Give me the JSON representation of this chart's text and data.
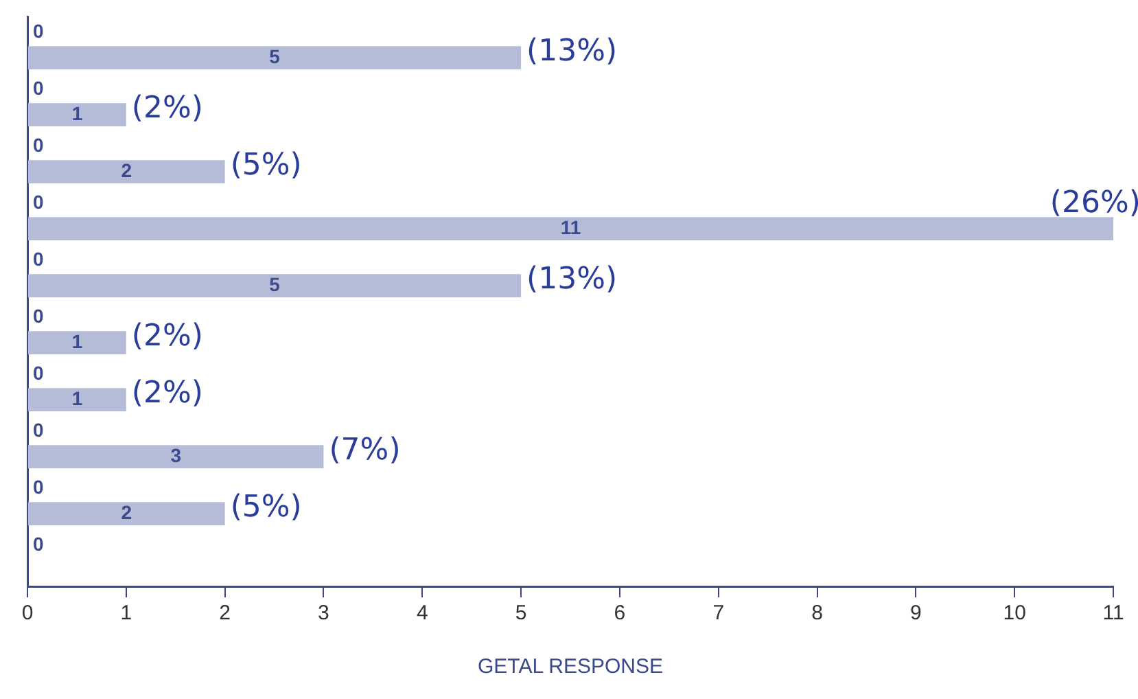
{
  "chart_data": {
    "type": "bar",
    "orientation": "horizontal",
    "xlabel": "GETAL RESPONSE",
    "categories": [
      null,
      null,
      null,
      null,
      null,
      null,
      null,
      null,
      null,
      null
    ],
    "series": [
      {
        "color": "#b4bcd8",
        "values": [
          0,
          0,
          0,
          0,
          0,
          0,
          0,
          0,
          0,
          0
        ]
      },
      {
        "color": "#b4bcd8",
        "values": [
          5,
          1,
          2,
          11,
          5,
          1,
          1,
          3,
          2,
          null
        ]
      }
    ],
    "xlim": [
      0,
      11
    ],
    "xticks": [
      0,
      1,
      2,
      3,
      4,
      5,
      6,
      7,
      8,
      9,
      10,
      11
    ],
    "data_labels": true,
    "grid": false,
    "legend": false,
    "annotations": [
      "(13%)",
      "(2%)",
      "(5%)",
      "(26%)",
      "(13%)",
      "(2%)",
      "(2%)",
      "(7%)",
      "(5%)"
    ]
  }
}
